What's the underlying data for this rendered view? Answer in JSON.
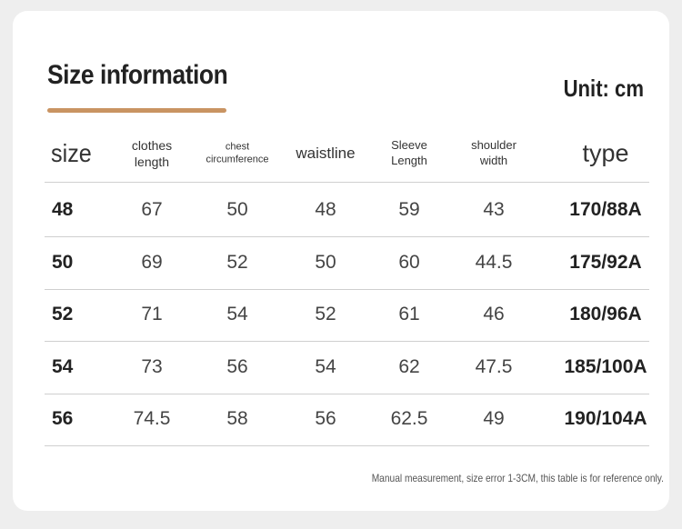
{
  "header": {
    "title": "Size information",
    "unit": "Unit: cm"
  },
  "table": {
    "columns": [
      "size",
      "clothes length",
      "chest circumference",
      "waistline",
      "Sleeve Length",
      "shoulder width",
      "type"
    ],
    "rows": [
      [
        "48",
        "67",
        "50",
        "48",
        "59",
        "43",
        "170/88A"
      ],
      [
        "50",
        "69",
        "52",
        "50",
        "60",
        "44.5",
        "175/92A"
      ],
      [
        "52",
        "71",
        "54",
        "52",
        "61",
        "46",
        "180/96A"
      ],
      [
        "54",
        "73",
        "56",
        "54",
        "62",
        "47.5",
        "185/100A"
      ],
      [
        "56",
        "74.5",
        "58",
        "56",
        "62.5",
        "49",
        "190/104A"
      ]
    ]
  },
  "footnote": "Manual measurement, size error 1-3CM, this table is for reference only."
}
